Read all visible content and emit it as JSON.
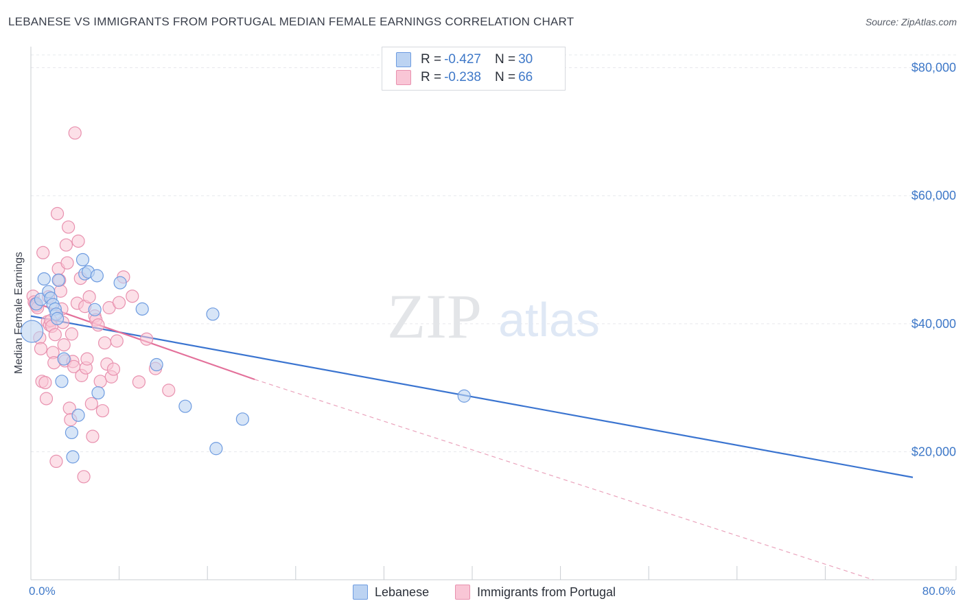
{
  "title": "LEBANESE VS IMMIGRANTS FROM PORTUGAL MEDIAN FEMALE EARNINGS CORRELATION CHART",
  "source": "Source: ZipAtlas.com",
  "watermark": {
    "zip": "ZIP",
    "atlas": "atlas"
  },
  "legend": [
    {
      "r_label": "R =",
      "r_value": "-0.427",
      "n_label": "N =",
      "n_value": "30"
    },
    {
      "r_label": "R =",
      "r_value": "-0.238",
      "n_label": "N =",
      "n_value": "66"
    }
  ],
  "chart_data": {
    "type": "scatter",
    "title": "LEBANESE VS IMMIGRANTS FROM PORTUGAL MEDIAN FEMALE EARNINGS CORRELATION CHART",
    "xlabel": "",
    "ylabel": "Median Female Earnings",
    "xlim": [
      0,
      80
    ],
    "ylim": [
      0,
      82000
    ],
    "x_tick_labels": {
      "min": "0.0%",
      "max": "80.0%"
    },
    "y_ticks": [
      {
        "value": 20000,
        "label": "$20,000"
      },
      {
        "value": 40000,
        "label": "$40,000"
      },
      {
        "value": 60000,
        "label": "$60,000"
      },
      {
        "value": 80000,
        "label": "$80,000"
      }
    ],
    "colors": {
      "lebanese": "#3a74d0",
      "portugal": "#e3709a",
      "lebanese_fill": "#bcd3f2",
      "portugal_fill": "#f9c6d6",
      "axis_label": "#3e78c8"
    },
    "series": [
      {
        "name": "Lebanese",
        "points": [
          [
            0.1,
            38800
          ],
          [
            0.5,
            43100
          ],
          [
            0.9,
            43800
          ],
          [
            1.2,
            47000
          ],
          [
            1.6,
            45000
          ],
          [
            1.8,
            44000
          ],
          [
            2.0,
            43000
          ],
          [
            2.2,
            42300
          ],
          [
            2.3,
            41500
          ],
          [
            2.4,
            40800
          ],
          [
            2.5,
            46800
          ],
          [
            2.8,
            31000
          ],
          [
            3.0,
            34500
          ],
          [
            3.7,
            23000
          ],
          [
            3.8,
            19200
          ],
          [
            4.3,
            25700
          ],
          [
            4.7,
            50000
          ],
          [
            4.9,
            47800
          ],
          [
            5.2,
            48100
          ],
          [
            5.8,
            42200
          ],
          [
            6.0,
            47500
          ],
          [
            6.1,
            29200
          ],
          [
            8.1,
            46400
          ],
          [
            10.1,
            42300
          ],
          [
            11.4,
            33600
          ],
          [
            14.0,
            27100
          ],
          [
            16.5,
            41500
          ],
          [
            16.8,
            20500
          ],
          [
            19.2,
            25100
          ],
          [
            39.3,
            28700
          ]
        ],
        "trend": {
          "x": [
            0,
            80
          ],
          "y": [
            41200,
            16000
          ]
        }
      },
      {
        "name": "Immigrants from Portugal",
        "points": [
          [
            0.2,
            44300
          ],
          [
            0.3,
            43400
          ],
          [
            0.4,
            43100
          ],
          [
            0.5,
            42800
          ],
          [
            0.6,
            42500
          ],
          [
            0.8,
            37800
          ],
          [
            0.9,
            36100
          ],
          [
            1.0,
            31000
          ],
          [
            1.1,
            51100
          ],
          [
            1.3,
            30800
          ],
          [
            1.4,
            28300
          ],
          [
            1.5,
            40300
          ],
          [
            1.6,
            44200
          ],
          [
            1.7,
            39800
          ],
          [
            1.8,
            40500
          ],
          [
            1.9,
            39600
          ],
          [
            2.0,
            35500
          ],
          [
            2.1,
            33900
          ],
          [
            2.2,
            38300
          ],
          [
            2.3,
            18500
          ],
          [
            2.4,
            57200
          ],
          [
            2.5,
            48600
          ],
          [
            2.6,
            46800
          ],
          [
            2.7,
            45100
          ],
          [
            2.8,
            42300
          ],
          [
            2.9,
            40200
          ],
          [
            3.0,
            36700
          ],
          [
            3.1,
            34200
          ],
          [
            3.2,
            52300
          ],
          [
            3.3,
            49500
          ],
          [
            3.4,
            55100
          ],
          [
            3.5,
            26800
          ],
          [
            3.6,
            25000
          ],
          [
            3.7,
            38400
          ],
          [
            3.8,
            34100
          ],
          [
            3.9,
            33300
          ],
          [
            4.0,
            69800
          ],
          [
            4.2,
            43200
          ],
          [
            4.3,
            52900
          ],
          [
            4.5,
            47100
          ],
          [
            4.6,
            31900
          ],
          [
            4.8,
            16100
          ],
          [
            4.9,
            42700
          ],
          [
            5.0,
            33100
          ],
          [
            5.1,
            34500
          ],
          [
            5.3,
            44200
          ],
          [
            5.5,
            27500
          ],
          [
            5.6,
            22400
          ],
          [
            5.8,
            41200
          ],
          [
            5.9,
            40600
          ],
          [
            6.1,
            39800
          ],
          [
            6.3,
            31000
          ],
          [
            6.5,
            26400
          ],
          [
            6.7,
            37000
          ],
          [
            6.9,
            33700
          ],
          [
            7.1,
            42500
          ],
          [
            7.3,
            31700
          ],
          [
            7.5,
            32900
          ],
          [
            7.8,
            37300
          ],
          [
            8.0,
            43300
          ],
          [
            8.4,
            47300
          ],
          [
            9.2,
            44300
          ],
          [
            9.8,
            30900
          ],
          [
            10.5,
            37600
          ],
          [
            11.3,
            33000
          ],
          [
            12.5,
            29600
          ]
        ],
        "trend": {
          "x": [
            0,
            20.3
          ],
          "y": [
            43500,
            31300
          ]
        },
        "trend_extension": {
          "x": [
            20.3,
            80
          ],
          "y": [
            31300,
            -2000
          ]
        }
      }
    ]
  },
  "bottom_legend": [
    "Lebanese",
    "Immigrants from Portugal"
  ]
}
